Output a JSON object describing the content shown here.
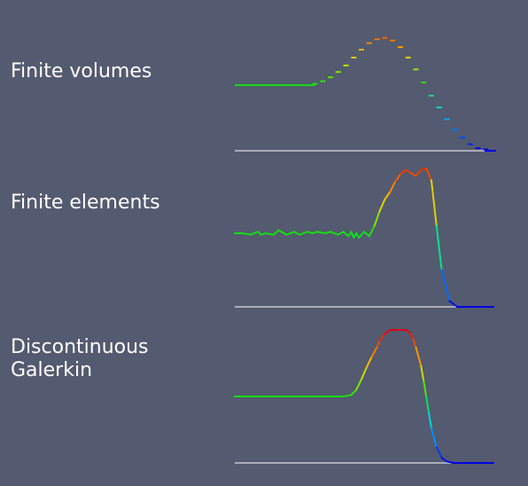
{
  "chart_data": [
    {
      "type": "line",
      "label": "Finite volumes",
      "style": "steps",
      "colormap": "jet",
      "x": [
        0.0,
        0.03,
        0.06,
        0.09,
        0.12,
        0.15,
        0.18,
        0.21,
        0.24,
        0.27,
        0.3,
        0.31,
        0.34,
        0.37,
        0.4,
        0.43,
        0.46,
        0.49,
        0.52,
        0.55,
        0.58,
        0.61,
        0.64,
        0.67,
        0.7,
        0.73,
        0.76,
        0.79,
        0.82,
        0.85,
        0.88,
        0.91,
        0.94,
        0.97,
        1.0
      ],
      "y": [
        0.5,
        0.5,
        0.5,
        0.5,
        0.5,
        0.5,
        0.5,
        0.5,
        0.5,
        0.5,
        0.5,
        0.51,
        0.53,
        0.56,
        0.6,
        0.65,
        0.71,
        0.77,
        0.82,
        0.85,
        0.86,
        0.84,
        0.79,
        0.71,
        0.62,
        0.52,
        0.42,
        0.33,
        0.24,
        0.16,
        0.1,
        0.05,
        0.02,
        0.01,
        0.0
      ]
    },
    {
      "type": "line",
      "label": "Finite elements",
      "style": "line",
      "colormap": "jet",
      "x": [
        0.0,
        0.03,
        0.06,
        0.09,
        0.1,
        0.12,
        0.15,
        0.17,
        0.2,
        0.23,
        0.25,
        0.28,
        0.3,
        0.32,
        0.35,
        0.37,
        0.4,
        0.42,
        0.44,
        0.45,
        0.46,
        0.47,
        0.48,
        0.5,
        0.52,
        0.54,
        0.56,
        0.58,
        0.6,
        0.62,
        0.64,
        0.66,
        0.68,
        0.7,
        0.72,
        0.74,
        0.76,
        0.78,
        0.8,
        0.83,
        0.86,
        0.9,
        0.95,
        1.0
      ],
      "y": [
        0.5,
        0.5,
        0.49,
        0.51,
        0.49,
        0.5,
        0.49,
        0.52,
        0.49,
        0.51,
        0.49,
        0.51,
        0.5,
        0.51,
        0.5,
        0.51,
        0.49,
        0.51,
        0.48,
        0.51,
        0.47,
        0.5,
        0.47,
        0.51,
        0.48,
        0.55,
        0.65,
        0.73,
        0.78,
        0.85,
        0.9,
        0.93,
        0.91,
        0.89,
        0.93,
        0.94,
        0.86,
        0.55,
        0.25,
        0.04,
        0.0,
        0.0,
        0.0,
        0.0
      ]
    },
    {
      "type": "line",
      "label": "Discontinuous\nGalerkin",
      "style": "line",
      "colormap": "jet",
      "x": [
        0.0,
        0.1,
        0.2,
        0.3,
        0.38,
        0.42,
        0.45,
        0.47,
        0.49,
        0.51,
        0.53,
        0.55,
        0.56,
        0.58,
        0.6,
        0.63,
        0.66,
        0.67,
        0.68,
        0.69,
        0.7,
        0.72,
        0.73,
        0.74,
        0.75,
        0.76,
        0.78,
        0.8,
        0.82,
        0.85,
        0.9,
        0.95,
        1.0
      ],
      "y": [
        0.5,
        0.5,
        0.5,
        0.5,
        0.5,
        0.5,
        0.51,
        0.55,
        0.63,
        0.72,
        0.8,
        0.87,
        0.92,
        0.97,
        1.0,
        1.0,
        1.0,
        0.99,
        0.97,
        0.93,
        0.87,
        0.73,
        0.62,
        0.5,
        0.38,
        0.26,
        0.12,
        0.04,
        0.01,
        0.0,
        0.0,
        0.0,
        0.0
      ]
    }
  ]
}
